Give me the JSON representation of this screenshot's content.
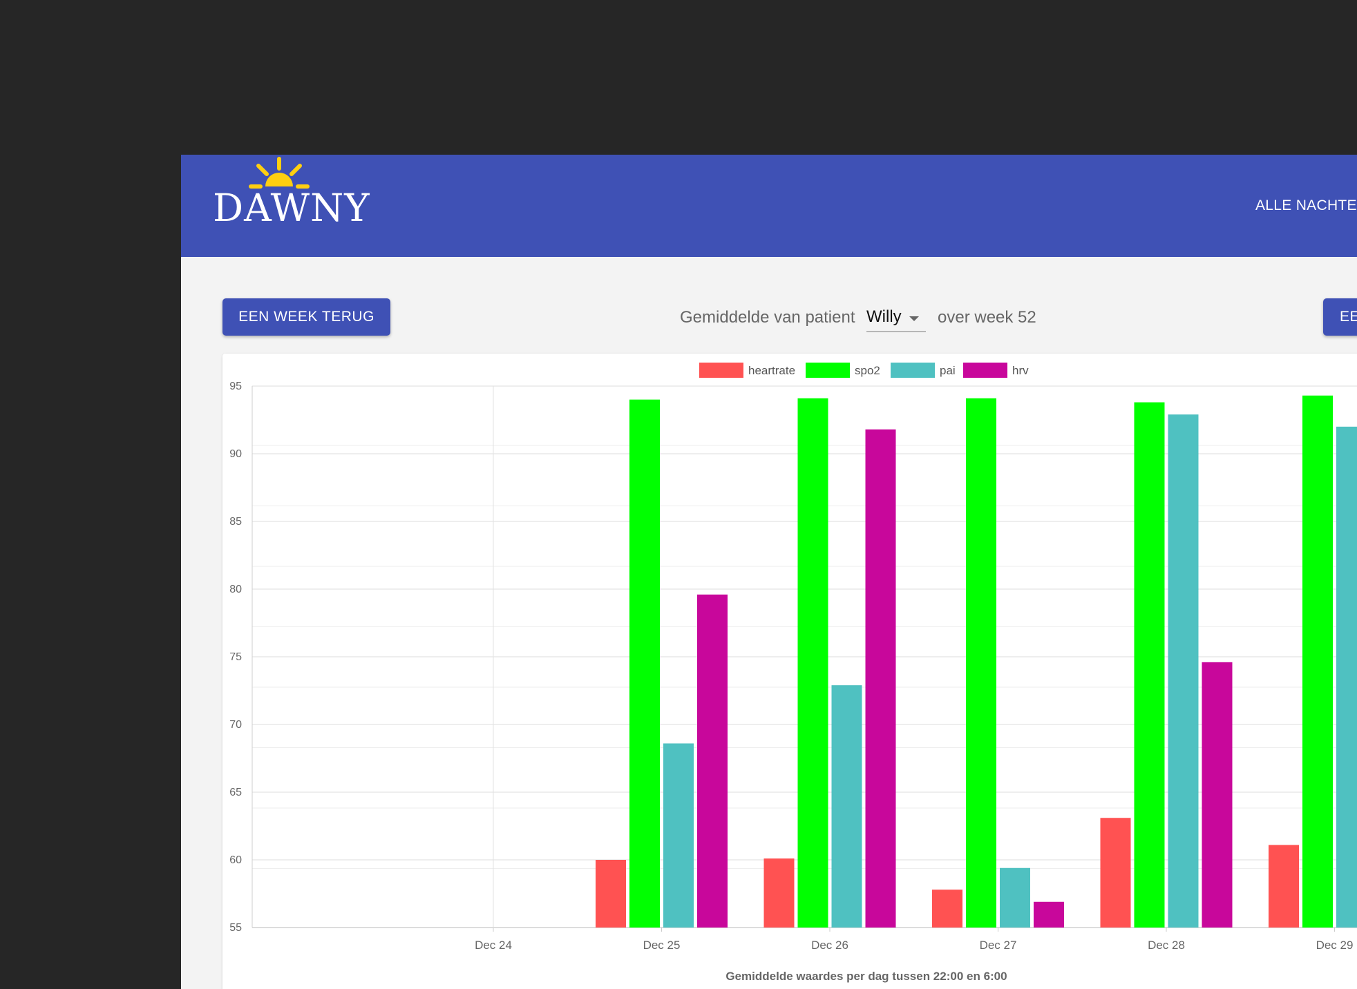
{
  "app": {
    "logo_text": "DAWNY",
    "nav_link": "ALLE NACHTE"
  },
  "controls": {
    "back_button": "EEN WEEK TERUG",
    "forward_button": "EE",
    "title_prefix": "Gemiddelde van patient",
    "patient": "Willy",
    "title_suffix": "over week 52"
  },
  "colors": {
    "header": "#3f51b5",
    "heartrate": "#ff5252",
    "spo2": "#00ff00",
    "pai": "#4fc1c1",
    "hrv": "#c8079b"
  },
  "chart_data": {
    "type": "bar",
    "title": "",
    "xlabel": "Gemiddelde waardes per dag tussen 22:00 en 6:00",
    "ylabel": "",
    "ylim": [
      55,
      95
    ],
    "yticks": [
      55,
      60,
      65,
      70,
      75,
      80,
      85,
      90,
      95
    ],
    "grid": true,
    "legend_position": "top",
    "categories": [
      "Dec 24",
      "Dec 25",
      "Dec 26",
      "Dec 27",
      "Dec 28",
      "Dec 29"
    ],
    "series": [
      {
        "name": "heartrate",
        "color": "#ff5252",
        "values": [
          null,
          60,
          60.1,
          57.8,
          63.1,
          61.1
        ]
      },
      {
        "name": "spo2",
        "color": "#00ff00",
        "values": [
          null,
          94,
          94.1,
          94.1,
          93.8,
          94.3
        ]
      },
      {
        "name": "pai",
        "color": "#4fc1c1",
        "values": [
          null,
          68.6,
          72.9,
          59.4,
          92.9,
          92
        ]
      },
      {
        "name": "hrv",
        "color": "#c8079b",
        "values": [
          null,
          79.6,
          91.8,
          56.9,
          74.6,
          null
        ]
      }
    ]
  }
}
